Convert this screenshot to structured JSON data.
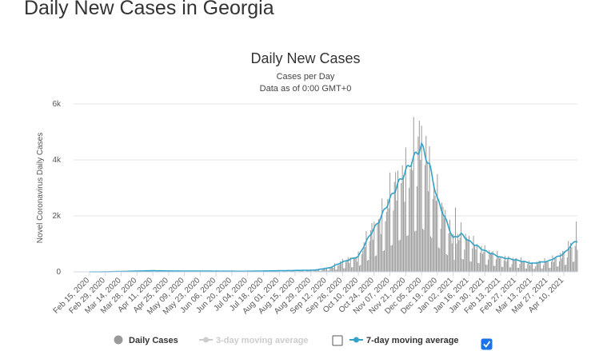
{
  "page": {
    "heading": "Daily New Cases in Georgia"
  },
  "chart_data": {
    "type": "bar",
    "title": "Daily New Cases",
    "subtitle_1": "Cases per Day",
    "subtitle_2": "Data as of 0:00 GMT+0",
    "ylabel": "Novel Coronavirus Daily Cases",
    "xlabel": "",
    "ylim": [
      0,
      6000
    ],
    "y_ticks": [
      0,
      2000,
      4000,
      6000
    ],
    "y_tick_labels": [
      "0",
      "2k",
      "4k",
      "6k"
    ],
    "x_tick_labels": [
      "Feb 15, 2020",
      "Feb 29, 2020",
      "Mar 14, 2020",
      "Mar 28, 2020",
      "Apr 11, 2020",
      "Apr 25, 2020",
      "May 09, 2020",
      "May 23, 2020",
      "Jun 06, 2020",
      "Jun 20, 2020",
      "Jul 04, 2020",
      "Jul 18, 2020",
      "Aug 01, 2020",
      "Aug 15, 2020",
      "Aug 29, 2020",
      "Sep 12, 2020",
      "Sep 26, 2020",
      "Oct 10, 2020",
      "Oct 24, 2020",
      "Nov 07, 2020",
      "Nov 21, 2020",
      "Dec 05, 2020",
      "Dec 19, 2020",
      "Jan 02, 2021",
      "Jan 16, 2021",
      "Jan 30, 2021",
      "Feb 13, 2021",
      "Feb 27, 2021",
      "Mar 13, 2021",
      "Mar 27, 2021",
      "Apr 10, 2021"
    ],
    "grid": true,
    "legend_position": "bottom",
    "colors": {
      "bars": "#999999",
      "ma7": "#33a3c7",
      "ma3": "#cccccc",
      "grid": "#e6e6e6",
      "legend_active": "#333333",
      "legend_inactive": "#cccccc",
      "checkbox": "#1a73e8"
    },
    "legend": [
      {
        "name": "Daily Cases",
        "visible": true,
        "checkbox": null
      },
      {
        "name": "3-day moving average",
        "visible": false,
        "checkbox": false
      },
      {
        "name": "7-day moving average",
        "visible": true,
        "checkbox": true
      }
    ],
    "series": [
      {
        "name": "Daily Cases",
        "type": "bar",
        "keypoints": [
          {
            "date": "Feb 15, 2020",
            "value": 0
          },
          {
            "date": "Mar 01, 2020",
            "value": 2
          },
          {
            "date": "Mar 20, 2020",
            "value": 10
          },
          {
            "date": "Apr 10, 2020",
            "value": 40
          },
          {
            "date": "May 01, 2020",
            "value": 30
          },
          {
            "date": "Jun 01, 2020",
            "value": 25
          },
          {
            "date": "Jul 01, 2020",
            "value": 20
          },
          {
            "date": "Aug 01, 2020",
            "value": 40
          },
          {
            "date": "Sep 01, 2020",
            "value": 60
          },
          {
            "date": "Sep 15, 2020",
            "value": 150
          },
          {
            "date": "Sep 26, 2020",
            "value": 350
          },
          {
            "date": "Oct 10, 2020",
            "value": 550
          },
          {
            "date": "Oct 20, 2020",
            "value": 1300
          },
          {
            "date": "Oct 28, 2020",
            "value": 1800
          },
          {
            "date": "Nov 07, 2020",
            "value": 2600
          },
          {
            "date": "Nov 15, 2020",
            "value": 3200
          },
          {
            "date": "Nov 21, 2020",
            "value": 3600
          },
          {
            "date": "Nov 30, 2020",
            "value": 4200
          },
          {
            "date": "Dec 05, 2020",
            "value": 4500
          },
          {
            "date": "Dec 12, 2020",
            "value": 3800
          },
          {
            "date": "Dec 19, 2020",
            "value": 2600
          },
          {
            "date": "Dec 26, 2020",
            "value": 1900
          },
          {
            "date": "Jan 02, 2021",
            "value": 1200
          },
          {
            "date": "Jan 09, 2021",
            "value": 1350
          },
          {
            "date": "Jan 16, 2021",
            "value": 1100
          },
          {
            "date": "Jan 30, 2021",
            "value": 750
          },
          {
            "date": "Feb 13, 2021",
            "value": 520
          },
          {
            "date": "Feb 27, 2021",
            "value": 420
          },
          {
            "date": "Mar 13, 2021",
            "value": 300
          },
          {
            "date": "Mar 27, 2021",
            "value": 380
          },
          {
            "date": "Apr 10, 2021",
            "value": 650
          },
          {
            "date": "Apr 20, 2021",
            "value": 1100
          }
        ],
        "notable_peaks": [
          {
            "date": "Dec 03, 2020",
            "value": 5400
          },
          {
            "date": "Jan 04, 2021",
            "value": 2300
          },
          {
            "date": "Apr 21, 2021",
            "value": 1800
          }
        ]
      },
      {
        "name": "7-day moving average",
        "type": "line",
        "keypoints": [
          {
            "date": "Feb 15, 2020",
            "value": 0
          },
          {
            "date": "Mar 01, 2020",
            "value": 2
          },
          {
            "date": "Apr 10, 2020",
            "value": 40
          },
          {
            "date": "May 01, 2020",
            "value": 30
          },
          {
            "date": "Jul 01, 2020",
            "value": 20
          },
          {
            "date": "Aug 01, 2020",
            "value": 40
          },
          {
            "date": "Sep 01, 2020",
            "value": 60
          },
          {
            "date": "Sep 15, 2020",
            "value": 150
          },
          {
            "date": "Sep 26, 2020",
            "value": 350
          },
          {
            "date": "Oct 10, 2020",
            "value": 550
          },
          {
            "date": "Oct 20, 2020",
            "value": 1300
          },
          {
            "date": "Oct 28, 2020",
            "value": 1800
          },
          {
            "date": "Nov 07, 2020",
            "value": 2600
          },
          {
            "date": "Nov 15, 2020",
            "value": 3200
          },
          {
            "date": "Nov 21, 2020",
            "value": 3600
          },
          {
            "date": "Nov 30, 2020",
            "value": 4200
          },
          {
            "date": "Dec 05, 2020",
            "value": 4500
          },
          {
            "date": "Dec 12, 2020",
            "value": 3800
          },
          {
            "date": "Dec 19, 2020",
            "value": 2600
          },
          {
            "date": "Dec 26, 2020",
            "value": 1900
          },
          {
            "date": "Jan 02, 2021",
            "value": 1200
          },
          {
            "date": "Jan 09, 2021",
            "value": 1350
          },
          {
            "date": "Jan 16, 2021",
            "value": 1100
          },
          {
            "date": "Jan 30, 2021",
            "value": 750
          },
          {
            "date": "Feb 13, 2021",
            "value": 520
          },
          {
            "date": "Feb 27, 2021",
            "value": 420
          },
          {
            "date": "Mar 13, 2021",
            "value": 300
          },
          {
            "date": "Mar 27, 2021",
            "value": 380
          },
          {
            "date": "Apr 10, 2021",
            "value": 650
          },
          {
            "date": "Apr 20, 2021",
            "value": 1100
          }
        ]
      }
    ]
  }
}
